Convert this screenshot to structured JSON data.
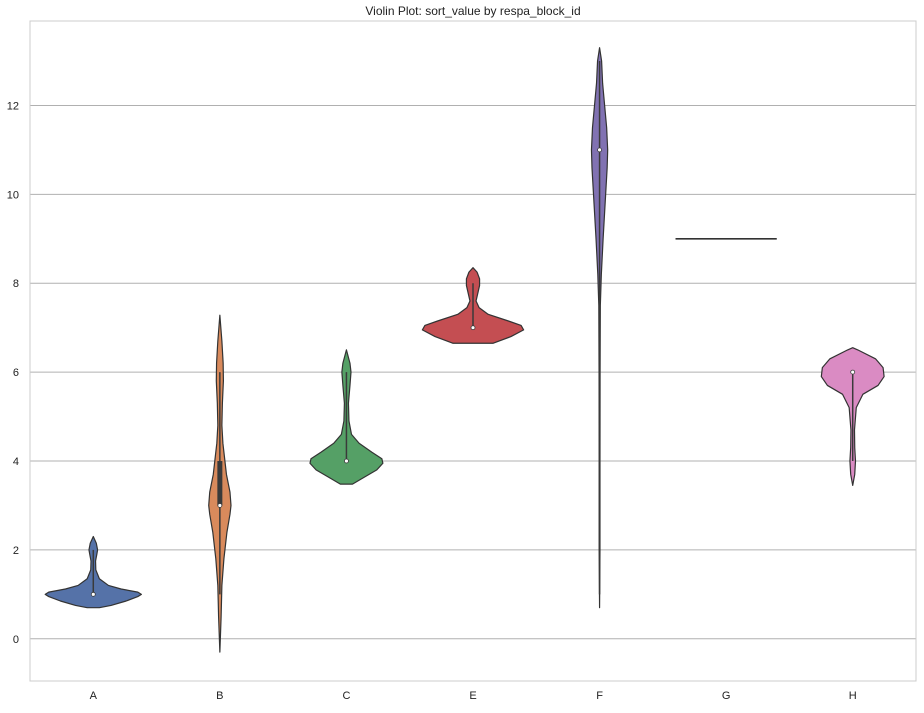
{
  "chart_data": {
    "type": "violin",
    "title": "Violin Plot: sort_value by respa_block_id",
    "xlabel": "",
    "ylabel": "",
    "categories": [
      "A",
      "B",
      "C",
      "E",
      "F",
      "G",
      "H"
    ],
    "ylim": [
      -0.95,
      13.9
    ],
    "yticks": [
      0,
      2,
      4,
      6,
      8,
      10,
      12
    ],
    "grid": "y",
    "legend": "none",
    "colors": {
      "A": "#5572a8",
      "B": "#d98a5c",
      "C": "#55a066",
      "E": "#c44e52",
      "F": "#8172b2",
      "G": "#937860",
      "H": "#da8bc3",
      "outline": "#333333",
      "grid": "#b0b0b0",
      "axes": "#cccccc",
      "text": "#222222"
    },
    "violins": [
      {
        "category": "A",
        "median": 1,
        "q1": 1,
        "q3": 1,
        "min": 1,
        "max": 2,
        "profile": [
          [
            0.7,
            0.12
          ],
          [
            0.75,
            0.35
          ],
          [
            0.85,
            0.65
          ],
          [
            0.95,
            0.88
          ],
          [
            1.0,
            0.95
          ],
          [
            1.05,
            0.88
          ],
          [
            1.12,
            0.55
          ],
          [
            1.2,
            0.3
          ],
          [
            1.35,
            0.12
          ],
          [
            1.55,
            0.05
          ],
          [
            1.75,
            0.045
          ],
          [
            1.9,
            0.07
          ],
          [
            2.0,
            0.085
          ],
          [
            2.15,
            0.06
          ],
          [
            2.3,
            0.0
          ]
        ]
      },
      {
        "category": "B",
        "median": 3,
        "q1": 3,
        "q3": 4,
        "min": 1,
        "max": 6,
        "profile": [
          [
            -0.3,
            0.0
          ],
          [
            0.5,
            0.025
          ],
          [
            1.2,
            0.04
          ],
          [
            1.8,
            0.08
          ],
          [
            2.4,
            0.14
          ],
          [
            2.8,
            0.2
          ],
          [
            3.0,
            0.22
          ],
          [
            3.3,
            0.2
          ],
          [
            3.7,
            0.13
          ],
          [
            4.0,
            0.1
          ],
          [
            4.4,
            0.06
          ],
          [
            4.8,
            0.04
          ],
          [
            5.3,
            0.05
          ],
          [
            5.8,
            0.07
          ],
          [
            6.2,
            0.065
          ],
          [
            6.7,
            0.04
          ],
          [
            7.28,
            0.0
          ]
        ]
      },
      {
        "category": "C",
        "median": 4,
        "q1": 4,
        "q3": 4,
        "min": 4,
        "max": 6,
        "profile": [
          [
            3.48,
            0.12
          ],
          [
            3.6,
            0.3
          ],
          [
            3.8,
            0.6
          ],
          [
            3.95,
            0.72
          ],
          [
            4.05,
            0.7
          ],
          [
            4.2,
            0.5
          ],
          [
            4.4,
            0.25
          ],
          [
            4.6,
            0.1
          ],
          [
            4.9,
            0.05
          ],
          [
            5.3,
            0.04
          ],
          [
            5.7,
            0.07
          ],
          [
            6.0,
            0.09
          ],
          [
            6.2,
            0.07
          ],
          [
            6.5,
            0.0
          ]
        ]
      },
      {
        "category": "E",
        "median": 7,
        "q1": 7,
        "q3": 7,
        "min": 7,
        "max": 8,
        "profile": [
          [
            6.65,
            0.4
          ],
          [
            6.8,
            0.75
          ],
          [
            6.95,
            1.0
          ],
          [
            7.05,
            0.95
          ],
          [
            7.15,
            0.7
          ],
          [
            7.3,
            0.3
          ],
          [
            7.45,
            0.12
          ],
          [
            7.6,
            0.06
          ],
          [
            7.75,
            0.09
          ],
          [
            7.95,
            0.13
          ],
          [
            8.1,
            0.13
          ],
          [
            8.25,
            0.08
          ],
          [
            8.35,
            0.0
          ]
        ]
      },
      {
        "category": "F",
        "median": 11,
        "q1": 11,
        "q3": 11,
        "min": 1,
        "max": 13,
        "profile": [
          [
            0.7,
            0.0
          ],
          [
            2.0,
            0.008
          ],
          [
            4.0,
            0.008
          ],
          [
            6.0,
            0.01
          ],
          [
            7.5,
            0.015
          ],
          [
            8.2,
            0.035
          ],
          [
            9.0,
            0.07
          ],
          [
            10.0,
            0.12
          ],
          [
            10.6,
            0.15
          ],
          [
            11.0,
            0.16
          ],
          [
            11.5,
            0.14
          ],
          [
            12.0,
            0.1
          ],
          [
            12.5,
            0.06
          ],
          [
            13.0,
            0.04
          ],
          [
            13.3,
            0.0
          ]
        ]
      },
      {
        "category": "G",
        "median": 9,
        "q1": 9,
        "q3": 9,
        "min": 9,
        "max": 9,
        "profile": []
      },
      {
        "category": "H",
        "median": 6,
        "q1": 6,
        "q3": 6,
        "min": 4,
        "max": 6,
        "profile": [
          [
            3.45,
            0.0
          ],
          [
            3.7,
            0.04
          ],
          [
            4.0,
            0.055
          ],
          [
            4.3,
            0.04
          ],
          [
            4.7,
            0.035
          ],
          [
            5.2,
            0.07
          ],
          [
            5.5,
            0.2
          ],
          [
            5.7,
            0.5
          ],
          [
            5.9,
            0.62
          ],
          [
            6.1,
            0.6
          ],
          [
            6.3,
            0.45
          ],
          [
            6.5,
            0.1
          ],
          [
            6.55,
            0.0
          ]
        ]
      }
    ]
  }
}
